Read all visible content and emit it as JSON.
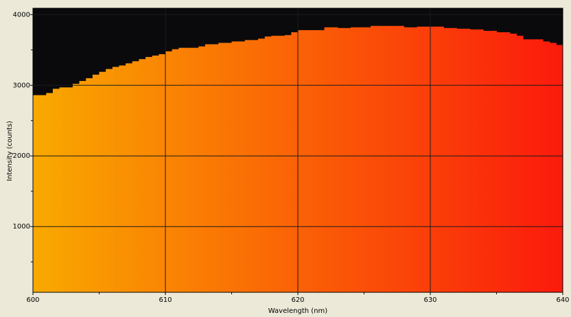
{
  "chart_data": {
    "type": "step-area",
    "x_label": "Wavelength (nm)",
    "y_label": "Intensity (counts)",
    "x": [
      600,
      601,
      601.5,
      602,
      603,
      603.5,
      604,
      604.5,
      605,
      605.5,
      606,
      606.5,
      607,
      607.5,
      608,
      608.5,
      609,
      609.5,
      610,
      610.5,
      611,
      612,
      612.5,
      613,
      614,
      615,
      616,
      617,
      617.5,
      618,
      619,
      619.5,
      620,
      621,
      622,
      623,
      624,
      625,
      625.5,
      626,
      627,
      628,
      629,
      630,
      631,
      632,
      633,
      634,
      635,
      636,
      636.5,
      637,
      638,
      638.5,
      639,
      639.5
    ],
    "values": [
      2860,
      2890,
      2950,
      2970,
      3020,
      3060,
      3100,
      3150,
      3190,
      3230,
      3260,
      3280,
      3310,
      3340,
      3370,
      3400,
      3420,
      3440,
      3480,
      3510,
      3530,
      3530,
      3550,
      3580,
      3600,
      3620,
      3640,
      3660,
      3690,
      3700,
      3710,
      3750,
      3780,
      3780,
      3820,
      3810,
      3820,
      3820,
      3840,
      3840,
      3840,
      3820,
      3830,
      3830,
      3810,
      3800,
      3790,
      3770,
      3750,
      3730,
      3700,
      3650,
      3650,
      3620,
      3600,
      3570
    ],
    "gradient": [
      "#f9a900",
      "#fb1a0c"
    ],
    "background": "#0a0a0c",
    "xlim": [
      600,
      640
    ],
    "ylim": [
      70,
      4090
    ],
    "xticks": [
      600,
      610,
      620,
      630,
      640
    ],
    "yticks": [
      1000,
      2000,
      3000,
      4000
    ],
    "xminorticks": [
      605,
      615,
      625,
      635
    ],
    "yminorticks": [
      500,
      1500,
      2500,
      3500
    ],
    "grid": true
  }
}
